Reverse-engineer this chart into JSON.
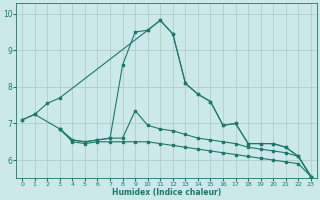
{
  "xlabel": "Humidex (Indice chaleur)",
  "xlim": [
    -0.5,
    23.5
  ],
  "ylim": [
    5.5,
    10.3
  ],
  "yticks": [
    6,
    7,
    8,
    9,
    10
  ],
  "xticks": [
    0,
    1,
    2,
    3,
    4,
    5,
    6,
    7,
    8,
    9,
    10,
    11,
    12,
    13,
    14,
    15,
    16,
    17,
    18,
    19,
    20,
    21,
    22,
    23
  ],
  "bg_color": "#cce8e8",
  "grid_color": "#b0cccc",
  "line_color": "#1a7a6a",
  "lines": [
    {
      "x": [
        0,
        1,
        2,
        3,
        10,
        11,
        12,
        13,
        14,
        15,
        16,
        17,
        18,
        19,
        20,
        21,
        22,
        23
      ],
      "y": [
        7.1,
        7.25,
        7.55,
        7.7,
        9.55,
        9.82,
        9.45,
        8.1,
        7.8,
        7.6,
        6.95,
        7.0,
        6.45,
        6.45,
        6.45,
        6.35,
        6.1,
        5.55
      ]
    },
    {
      "x": [
        0,
        1,
        3,
        4,
        5,
        6,
        7,
        8,
        9,
        10,
        11,
        12,
        13,
        14,
        15,
        16,
        17,
        18,
        19,
        20,
        21,
        22,
        23
      ],
      "y": [
        7.1,
        7.25,
        6.85,
        6.55,
        6.5,
        6.55,
        6.6,
        8.6,
        9.5,
        9.55,
        9.82,
        9.45,
        8.1,
        7.8,
        7.6,
        6.95,
        7.0,
        6.45,
        6.45,
        6.45,
        6.35,
        6.1,
        5.55
      ]
    },
    {
      "x": [
        3,
        4,
        5,
        6,
        7,
        8,
        9,
        10,
        11,
        12,
        13,
        14,
        15,
        16,
        17,
        18,
        19,
        20,
        21,
        22,
        23
      ],
      "y": [
        6.85,
        6.55,
        6.5,
        6.55,
        6.6,
        6.6,
        7.35,
        6.95,
        6.85,
        6.8,
        6.7,
        6.6,
        6.55,
        6.5,
        6.45,
        6.35,
        6.3,
        6.25,
        6.2,
        6.1,
        5.55
      ]
    },
    {
      "x": [
        3,
        4,
        5,
        6,
        7,
        8,
        9,
        10,
        11,
        12,
        13,
        14,
        15,
        16,
        17,
        18,
        19,
        20,
        21,
        22,
        23
      ],
      "y": [
        6.85,
        6.5,
        6.45,
        6.5,
        6.5,
        6.5,
        6.5,
        6.5,
        6.45,
        6.4,
        6.35,
        6.3,
        6.25,
        6.2,
        6.15,
        6.1,
        6.05,
        6.0,
        5.95,
        5.9,
        5.55
      ]
    }
  ]
}
